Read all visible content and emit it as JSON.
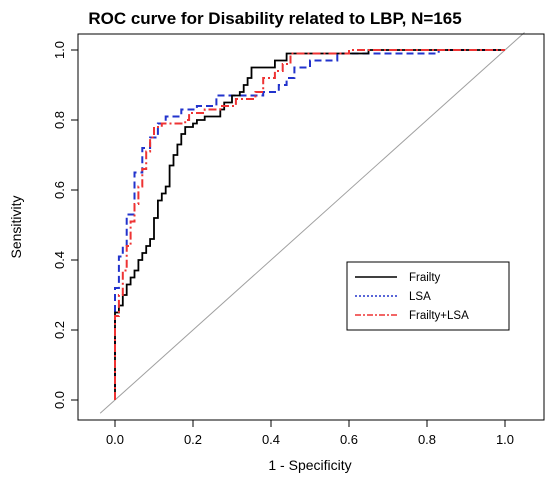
{
  "chart_data": {
    "type": "line",
    "title": "ROC curve for Disability related to LBP, N=165",
    "xlabel": "1 - Specificity",
    "ylabel": "Sensitivity",
    "xlim": [
      -0.05,
      1.05
    ],
    "ylim": [
      0.0,
      1.0
    ],
    "x_ticks": [
      "0.0",
      "0.2",
      "0.4",
      "0.6",
      "0.8",
      "1.0"
    ],
    "y_ticks": [
      "0.0",
      "0.2",
      "0.4",
      "0.6",
      "0.8",
      "1.0"
    ],
    "grid": false,
    "legend_position": "right-center",
    "reference_line": {
      "x": [
        0,
        1
      ],
      "y": [
        0,
        1
      ],
      "color": "#a0a0a0"
    },
    "series": [
      {
        "name": "Frailty",
        "color": "#000000",
        "style": "solid",
        "points": [
          [
            0,
            0
          ],
          [
            0,
            0.25
          ],
          [
            0.01,
            0.25
          ],
          [
            0.01,
            0.27
          ],
          [
            0.02,
            0.27
          ],
          [
            0.02,
            0.3
          ],
          [
            0.03,
            0.3
          ],
          [
            0.03,
            0.33
          ],
          [
            0.04,
            0.33
          ],
          [
            0.04,
            0.35
          ],
          [
            0.05,
            0.35
          ],
          [
            0.05,
            0.37
          ],
          [
            0.06,
            0.37
          ],
          [
            0.06,
            0.4
          ],
          [
            0.07,
            0.4
          ],
          [
            0.07,
            0.42
          ],
          [
            0.08,
            0.42
          ],
          [
            0.08,
            0.44
          ],
          [
            0.09,
            0.44
          ],
          [
            0.09,
            0.46
          ],
          [
            0.1,
            0.46
          ],
          [
            0.1,
            0.52
          ],
          [
            0.11,
            0.52
          ],
          [
            0.11,
            0.57
          ],
          [
            0.12,
            0.57
          ],
          [
            0.12,
            0.59
          ],
          [
            0.13,
            0.59
          ],
          [
            0.13,
            0.61
          ],
          [
            0.14,
            0.61
          ],
          [
            0.14,
            0.67
          ],
          [
            0.15,
            0.67
          ],
          [
            0.15,
            0.7
          ],
          [
            0.16,
            0.7
          ],
          [
            0.16,
            0.73
          ],
          [
            0.17,
            0.73
          ],
          [
            0.17,
            0.76
          ],
          [
            0.18,
            0.76
          ],
          [
            0.18,
            0.78
          ],
          [
            0.2,
            0.78
          ],
          [
            0.2,
            0.79
          ],
          [
            0.21,
            0.79
          ],
          [
            0.21,
            0.8
          ],
          [
            0.23,
            0.8
          ],
          [
            0.23,
            0.81
          ],
          [
            0.27,
            0.81
          ],
          [
            0.27,
            0.83
          ],
          [
            0.28,
            0.83
          ],
          [
            0.28,
            0.85
          ],
          [
            0.3,
            0.85
          ],
          [
            0.3,
            0.87
          ],
          [
            0.32,
            0.87
          ],
          [
            0.32,
            0.88
          ],
          [
            0.33,
            0.88
          ],
          [
            0.33,
            0.9
          ],
          [
            0.34,
            0.9
          ],
          [
            0.34,
            0.92
          ],
          [
            0.35,
            0.92
          ],
          [
            0.35,
            0.95
          ],
          [
            0.41,
            0.95
          ],
          [
            0.41,
            0.97
          ],
          [
            0.44,
            0.97
          ],
          [
            0.44,
            0.99
          ],
          [
            0.65,
            0.99
          ],
          [
            0.65,
            1.0
          ],
          [
            1.0,
            1.0
          ]
        ]
      },
      {
        "name": "LSA",
        "color": "#2233cc",
        "style": "dashed",
        "points": [
          [
            0,
            0
          ],
          [
            0,
            0.32
          ],
          [
            0.01,
            0.32
          ],
          [
            0.01,
            0.41
          ],
          [
            0.02,
            0.41
          ],
          [
            0.02,
            0.44
          ],
          [
            0.03,
            0.44
          ],
          [
            0.03,
            0.53
          ],
          [
            0.05,
            0.53
          ],
          [
            0.05,
            0.65
          ],
          [
            0.07,
            0.65
          ],
          [
            0.07,
            0.72
          ],
          [
            0.09,
            0.72
          ],
          [
            0.09,
            0.75
          ],
          [
            0.11,
            0.75
          ],
          [
            0.11,
            0.79
          ],
          [
            0.13,
            0.79
          ],
          [
            0.13,
            0.81
          ],
          [
            0.17,
            0.81
          ],
          [
            0.17,
            0.83
          ],
          [
            0.21,
            0.83
          ],
          [
            0.21,
            0.84
          ],
          [
            0.26,
            0.84
          ],
          [
            0.26,
            0.87
          ],
          [
            0.38,
            0.87
          ],
          [
            0.38,
            0.88
          ],
          [
            0.42,
            0.88
          ],
          [
            0.42,
            0.9
          ],
          [
            0.44,
            0.9
          ],
          [
            0.44,
            0.92
          ],
          [
            0.46,
            0.92
          ],
          [
            0.46,
            0.95
          ],
          [
            0.5,
            0.95
          ],
          [
            0.5,
            0.97
          ],
          [
            0.57,
            0.97
          ],
          [
            0.57,
            0.99
          ],
          [
            0.83,
            0.99
          ],
          [
            0.83,
            1.0
          ],
          [
            1.0,
            1.0
          ]
        ]
      },
      {
        "name": "Frailty+LSA",
        "color": "#ee3333",
        "style": "dashdot",
        "points": [
          [
            0,
            0
          ],
          [
            0,
            0.24
          ],
          [
            0.01,
            0.24
          ],
          [
            0.01,
            0.3
          ],
          [
            0.02,
            0.3
          ],
          [
            0.02,
            0.37
          ],
          [
            0.03,
            0.37
          ],
          [
            0.03,
            0.44
          ],
          [
            0.04,
            0.44
          ],
          [
            0.04,
            0.51
          ],
          [
            0.05,
            0.51
          ],
          [
            0.05,
            0.56
          ],
          [
            0.06,
            0.56
          ],
          [
            0.06,
            0.61
          ],
          [
            0.07,
            0.61
          ],
          [
            0.07,
            0.66
          ],
          [
            0.08,
            0.66
          ],
          [
            0.08,
            0.71
          ],
          [
            0.09,
            0.71
          ],
          [
            0.09,
            0.75
          ],
          [
            0.1,
            0.75
          ],
          [
            0.1,
            0.78
          ],
          [
            0.12,
            0.78
          ],
          [
            0.12,
            0.79
          ],
          [
            0.18,
            0.79
          ],
          [
            0.18,
            0.8
          ],
          [
            0.19,
            0.8
          ],
          [
            0.19,
            0.82
          ],
          [
            0.23,
            0.82
          ],
          [
            0.23,
            0.83
          ],
          [
            0.27,
            0.83
          ],
          [
            0.27,
            0.84
          ],
          [
            0.31,
            0.84
          ],
          [
            0.31,
            0.86
          ],
          [
            0.36,
            0.86
          ],
          [
            0.36,
            0.88
          ],
          [
            0.38,
            0.88
          ],
          [
            0.38,
            0.92
          ],
          [
            0.41,
            0.92
          ],
          [
            0.41,
            0.94
          ],
          [
            0.43,
            0.94
          ],
          [
            0.43,
            0.96
          ],
          [
            0.45,
            0.96
          ],
          [
            0.45,
            0.99
          ],
          [
            0.6,
            0.99
          ],
          [
            0.6,
            1.0
          ],
          [
            1.0,
            1.0
          ]
        ]
      }
    ]
  }
}
